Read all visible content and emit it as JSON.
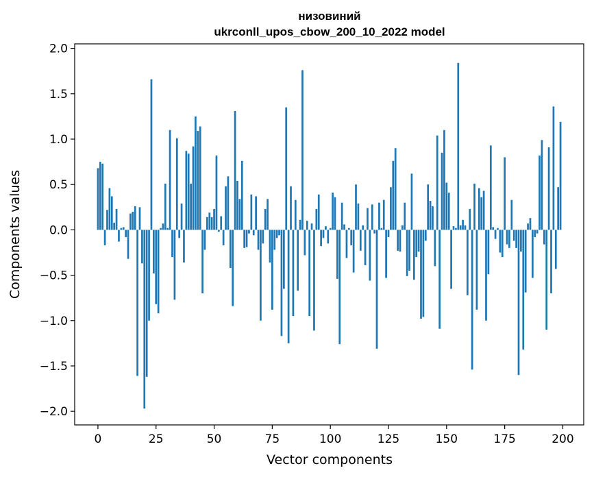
{
  "chart_data": {
    "type": "bar",
    "title_line1": "низовиний",
    "title_line2": "ukrconll_upos_cbow_200_10_2022 model",
    "xlabel": "Vector components",
    "ylabel": "Components values",
    "xlim": [
      -10,
      209
    ],
    "ylim": [
      -2.15,
      2.05
    ],
    "x_ticks": [
      0,
      25,
      50,
      75,
      100,
      125,
      150,
      175,
      200
    ],
    "y_ticks": [
      2.0,
      1.5,
      1.0,
      0.5,
      0.0,
      -0.5,
      -1.0,
      -1.5,
      -2.0
    ],
    "y_tick_labels": [
      "2.0",
      "1.5",
      "1.0",
      "0.5",
      "0.0",
      "−0.5",
      "−1.0",
      "−1.5",
      "−2.0"
    ],
    "color": "#1f77b4",
    "values": [
      0.68,
      0.75,
      0.73,
      -0.17,
      0.22,
      0.46,
      0.37,
      0.08,
      0.23,
      -0.13,
      0.02,
      0.03,
      -0.08,
      -0.32,
      0.18,
      0.2,
      0.26,
      -1.61,
      0.25,
      -0.37,
      -1.97,
      -1.62,
      -1.0,
      1.66,
      -0.48,
      -0.82,
      -0.92,
      0.02,
      0.07,
      0.51,
      0.02,
      1.1,
      -0.3,
      -0.77,
      1.01,
      -0.09,
      0.29,
      -0.36,
      0.87,
      0.84,
      0.51,
      0.92,
      1.25,
      1.09,
      1.14,
      -0.7,
      -0.22,
      0.14,
      0.19,
      0.14,
      0.23,
      0.82,
      -0.02,
      0.15,
      -0.17,
      0.48,
      0.59,
      -0.42,
      -0.84,
      1.31,
      0.54,
      0.34,
      0.76,
      -0.2,
      -0.19,
      -0.04,
      0.39,
      -0.06,
      0.37,
      -0.22,
      -1.0,
      -0.15,
      0.23,
      0.34,
      -0.36,
      -0.88,
      -0.22,
      -0.09,
      -0.06,
      -1.17,
      -0.65,
      1.35,
      -1.25,
      0.48,
      -0.95,
      0.33,
      -0.67,
      0.11,
      1.76,
      -0.28,
      0.1,
      -0.95,
      0.07,
      -1.11,
      0.23,
      0.39,
      -0.18,
      -0.09,
      0.04,
      -0.15,
      0.02,
      0.41,
      0.36,
      -0.54,
      -1.26,
      0.3,
      0.06,
      -0.31,
      0.02,
      -0.17,
      -0.47,
      0.5,
      0.29,
      -0.23,
      0.05,
      -0.39,
      0.24,
      -0.56,
      0.28,
      -0.04,
      -1.31,
      0.3,
      0.02,
      0.33,
      -0.53,
      -0.08,
      0.47,
      0.76,
      0.9,
      -0.23,
      -0.24,
      0.05,
      0.3,
      -0.51,
      -0.45,
      0.62,
      -0.55,
      -0.3,
      -0.24,
      -0.98,
      -0.96,
      -0.12,
      0.5,
      0.32,
      0.26,
      -0.4,
      1.04,
      -1.09,
      0.85,
      1.1,
      0.52,
      0.41,
      -0.65,
      0.04,
      0.02,
      1.84,
      0.05,
      0.11,
      0.05,
      -0.72,
      0.23,
      -1.54,
      0.51,
      -0.88,
      0.46,
      0.36,
      0.43,
      -1.0,
      -0.49,
      0.93,
      0.03,
      -0.1,
      0.02,
      -0.25,
      -0.3,
      0.8,
      -0.16,
      -0.2,
      0.33,
      -0.12,
      -0.2,
      -1.6,
      -0.24,
      -1.32,
      -0.69,
      0.07,
      0.13,
      -0.53,
      -0.08,
      -0.04,
      0.82,
      0.99,
      -0.16,
      -1.1,
      0.91,
      -0.7,
      1.36,
      -0.43,
      0.47,
      1.19
    ]
  }
}
